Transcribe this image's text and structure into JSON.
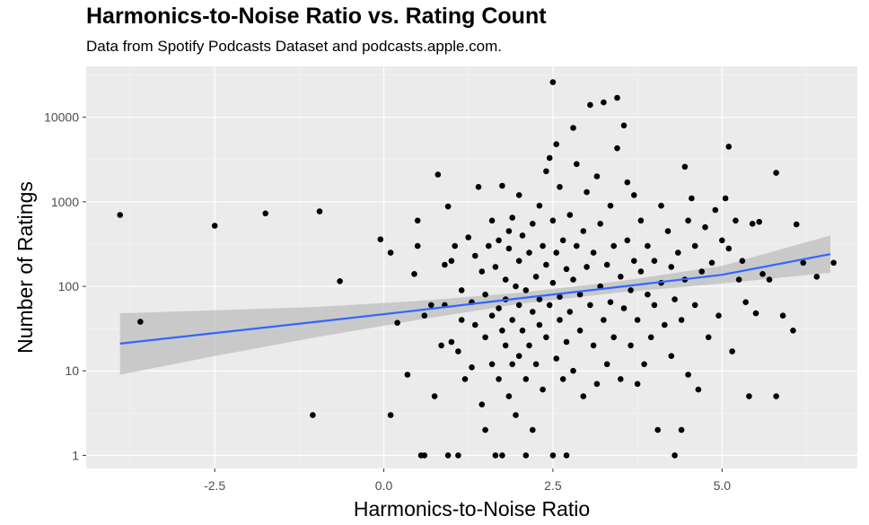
{
  "chart_data": {
    "type": "scatter",
    "title": "Harmonics-to-Noise Ratio vs. Rating Count",
    "subtitle": "Data from Spotify Podcasts Dataset and podcasts.apple.com.",
    "xlabel": "Harmonics-to-Noise Ratio",
    "ylabel": "Number of Ratings",
    "x_scale": "linear",
    "y_scale": "log10",
    "xlim": [
      -4.4,
      7.0
    ],
    "ylim": [
      0.7,
      40000
    ],
    "x_ticks": [
      -2.5,
      0.0,
      2.5,
      5.0
    ],
    "x_tick_labels": [
      "-2.5",
      "0.0",
      "2.5",
      "5.0"
    ],
    "y_ticks": [
      1,
      10,
      100,
      1000,
      10000
    ],
    "y_tick_labels": [
      "1",
      "10",
      "100",
      "1000",
      "10000"
    ],
    "grid": true,
    "colors": {
      "panel_bg": "#ebebeb",
      "grid_major": "#ffffff",
      "point": "#000000",
      "trend_line": "#3366ff",
      "confidence_band": "#bdbdbd"
    },
    "trend": {
      "method": "linear",
      "x": [
        -3.9,
        -2.5,
        -1.0,
        0.5,
        2.0,
        3.5,
        5.0,
        6.6
      ],
      "y": [
        21,
        28,
        38,
        52,
        72,
        99,
        137,
        240
      ],
      "band_lower": [
        9,
        15,
        25,
        40,
        62,
        85,
        108,
        145
      ],
      "band_upper": [
        48,
        52,
        57,
        67,
        84,
        115,
        175,
        400
      ]
    },
    "points": [
      [
        -3.9,
        700
      ],
      [
        -3.6,
        38
      ],
      [
        -2.5,
        520
      ],
      [
        -1.75,
        730
      ],
      [
        -1.05,
        3
      ],
      [
        -0.95,
        770
      ],
      [
        -0.65,
        115
      ],
      [
        -0.05,
        360
      ],
      [
        0.1,
        250
      ],
      [
        0.1,
        3
      ],
      [
        0.2,
        37
      ],
      [
        0.35,
        9
      ],
      [
        0.45,
        140
      ],
      [
        0.5,
        600
      ],
      [
        0.5,
        300
      ],
      [
        0.55,
        1
      ],
      [
        0.6,
        1
      ],
      [
        0.6,
        45
      ],
      [
        0.7,
        60
      ],
      [
        0.75,
        5
      ],
      [
        0.8,
        2100
      ],
      [
        0.85,
        20
      ],
      [
        0.9,
        180
      ],
      [
        0.9,
        60
      ],
      [
        0.95,
        880
      ],
      [
        0.95,
        1
      ],
      [
        1.0,
        22
      ],
      [
        1.0,
        200
      ],
      [
        1.05,
        300
      ],
      [
        1.1,
        17
      ],
      [
        1.1,
        1
      ],
      [
        1.15,
        90
      ],
      [
        1.15,
        40
      ],
      [
        1.2,
        8
      ],
      [
        1.25,
        380
      ],
      [
        1.3,
        11
      ],
      [
        1.3,
        65
      ],
      [
        1.35,
        230
      ],
      [
        1.35,
        35
      ],
      [
        1.4,
        1500
      ],
      [
        1.45,
        150
      ],
      [
        1.45,
        4
      ],
      [
        1.5,
        25
      ],
      [
        1.5,
        80
      ],
      [
        1.5,
        2
      ],
      [
        1.55,
        300
      ],
      [
        1.6,
        45
      ],
      [
        1.6,
        600
      ],
      [
        1.6,
        12
      ],
      [
        1.65,
        170
      ],
      [
        1.65,
        1
      ],
      [
        1.7,
        55
      ],
      [
        1.7,
        8
      ],
      [
        1.7,
        350
      ],
      [
        1.75,
        30
      ],
      [
        1.75,
        1
      ],
      [
        1.75,
        1550
      ],
      [
        1.8,
        120
      ],
      [
        1.8,
        20
      ],
      [
        1.8,
        70
      ],
      [
        1.85,
        450
      ],
      [
        1.85,
        5
      ],
      [
        1.85,
        280
      ],
      [
        1.9,
        12
      ],
      [
        1.9,
        40
      ],
      [
        1.9,
        650
      ],
      [
        1.95,
        100
      ],
      [
        1.95,
        3
      ],
      [
        2.0,
        200
      ],
      [
        2.0,
        60
      ],
      [
        2.0,
        15
      ],
      [
        2.0,
        1200
      ],
      [
        2.05,
        30
      ],
      [
        2.05,
        400
      ],
      [
        2.1,
        8
      ],
      [
        2.1,
        90
      ],
      [
        2.1,
        1
      ],
      [
        2.15,
        250
      ],
      [
        2.15,
        20
      ],
      [
        2.2,
        550
      ],
      [
        2.2,
        50
      ],
      [
        2.2,
        2
      ],
      [
        2.25,
        130
      ],
      [
        2.25,
        12
      ],
      [
        2.3,
        900
      ],
      [
        2.3,
        35
      ],
      [
        2.3,
        70
      ],
      [
        2.35,
        300
      ],
      [
        2.35,
        6
      ],
      [
        2.4,
        180
      ],
      [
        2.4,
        25
      ],
      [
        2.4,
        2300
      ],
      [
        2.45,
        3300
      ],
      [
        2.45,
        60
      ],
      [
        2.5,
        1
      ],
      [
        2.5,
        26000
      ],
      [
        2.5,
        600
      ],
      [
        2.5,
        110
      ],
      [
        2.55,
        14
      ],
      [
        2.55,
        250
      ],
      [
        2.55,
        4800
      ],
      [
        2.6,
        40
      ],
      [
        2.6,
        1500
      ],
      [
        2.6,
        75
      ],
      [
        2.65,
        8
      ],
      [
        2.65,
        350
      ],
      [
        2.7,
        1
      ],
      [
        2.7,
        160
      ],
      [
        2.7,
        22
      ],
      [
        2.75,
        700
      ],
      [
        2.75,
        50
      ],
      [
        2.8,
        7500
      ],
      [
        2.8,
        10
      ],
      [
        2.8,
        120
      ],
      [
        2.85,
        2800
      ],
      [
        2.85,
        300
      ],
      [
        2.9,
        30
      ],
      [
        2.9,
        80
      ],
      [
        2.95,
        450
      ],
      [
        2.95,
        5
      ],
      [
        3.0,
        170
      ],
      [
        3.0,
        1300
      ],
      [
        3.05,
        14000
      ],
      [
        3.05,
        60
      ],
      [
        3.1,
        20
      ],
      [
        3.1,
        250
      ],
      [
        3.15,
        2000
      ],
      [
        3.15,
        7
      ],
      [
        3.2,
        100
      ],
      [
        3.2,
        550
      ],
      [
        3.25,
        40
      ],
      [
        3.25,
        15000
      ],
      [
        3.3,
        180
      ],
      [
        3.3,
        12
      ],
      [
        3.35,
        900
      ],
      [
        3.35,
        65
      ],
      [
        3.4,
        300
      ],
      [
        3.4,
        25
      ],
      [
        3.45,
        4300
      ],
      [
        3.45,
        17000
      ],
      [
        3.5,
        130
      ],
      [
        3.5,
        8
      ],
      [
        3.55,
        8000
      ],
      [
        3.55,
        55
      ],
      [
        3.6,
        1700
      ],
      [
        3.6,
        350
      ],
      [
        3.65,
        20
      ],
      [
        3.65,
        90
      ],
      [
        3.7,
        1200
      ],
      [
        3.7,
        200
      ],
      [
        3.75,
        7
      ],
      [
        3.75,
        40
      ],
      [
        3.8,
        600
      ],
      [
        3.8,
        150
      ],
      [
        3.85,
        12
      ],
      [
        3.9,
        80
      ],
      [
        3.9,
        300
      ],
      [
        3.95,
        25
      ],
      [
        4.0,
        200
      ],
      [
        4.0,
        60
      ],
      [
        4.05,
        2
      ],
      [
        4.1,
        900
      ],
      [
        4.1,
        110
      ],
      [
        4.15,
        35
      ],
      [
        4.2,
        450
      ],
      [
        4.25,
        170
      ],
      [
        4.25,
        15
      ],
      [
        4.3,
        1
      ],
      [
        4.3,
        70
      ],
      [
        4.35,
        250
      ],
      [
        4.4,
        2
      ],
      [
        4.4,
        40
      ],
      [
        4.45,
        2600
      ],
      [
        4.45,
        120
      ],
      [
        4.5,
        600
      ],
      [
        4.5,
        9
      ],
      [
        4.55,
        1100
      ],
      [
        4.6,
        300
      ],
      [
        4.6,
        60
      ],
      [
        4.65,
        6
      ],
      [
        4.7,
        150
      ],
      [
        4.75,
        500
      ],
      [
        4.8,
        25
      ],
      [
        4.85,
        190
      ],
      [
        4.9,
        800
      ],
      [
        4.95,
        45
      ],
      [
        5.0,
        350
      ],
      [
        5.05,
        1100
      ],
      [
        5.1,
        280
      ],
      [
        5.1,
        4500
      ],
      [
        5.15,
        17
      ],
      [
        5.2,
        600
      ],
      [
        5.25,
        120
      ],
      [
        5.3,
        200
      ],
      [
        5.35,
        65
      ],
      [
        5.4,
        5
      ],
      [
        5.45,
        550
      ],
      [
        5.5,
        48
      ],
      [
        5.55,
        580
      ],
      [
        5.6,
        140
      ],
      [
        5.7,
        120
      ],
      [
        5.8,
        2200
      ],
      [
        5.8,
        5
      ],
      [
        5.9,
        45
      ],
      [
        6.05,
        30
      ],
      [
        6.1,
        540
      ],
      [
        6.2,
        190
      ],
      [
        6.4,
        130
      ],
      [
        6.65,
        190
      ]
    ]
  }
}
